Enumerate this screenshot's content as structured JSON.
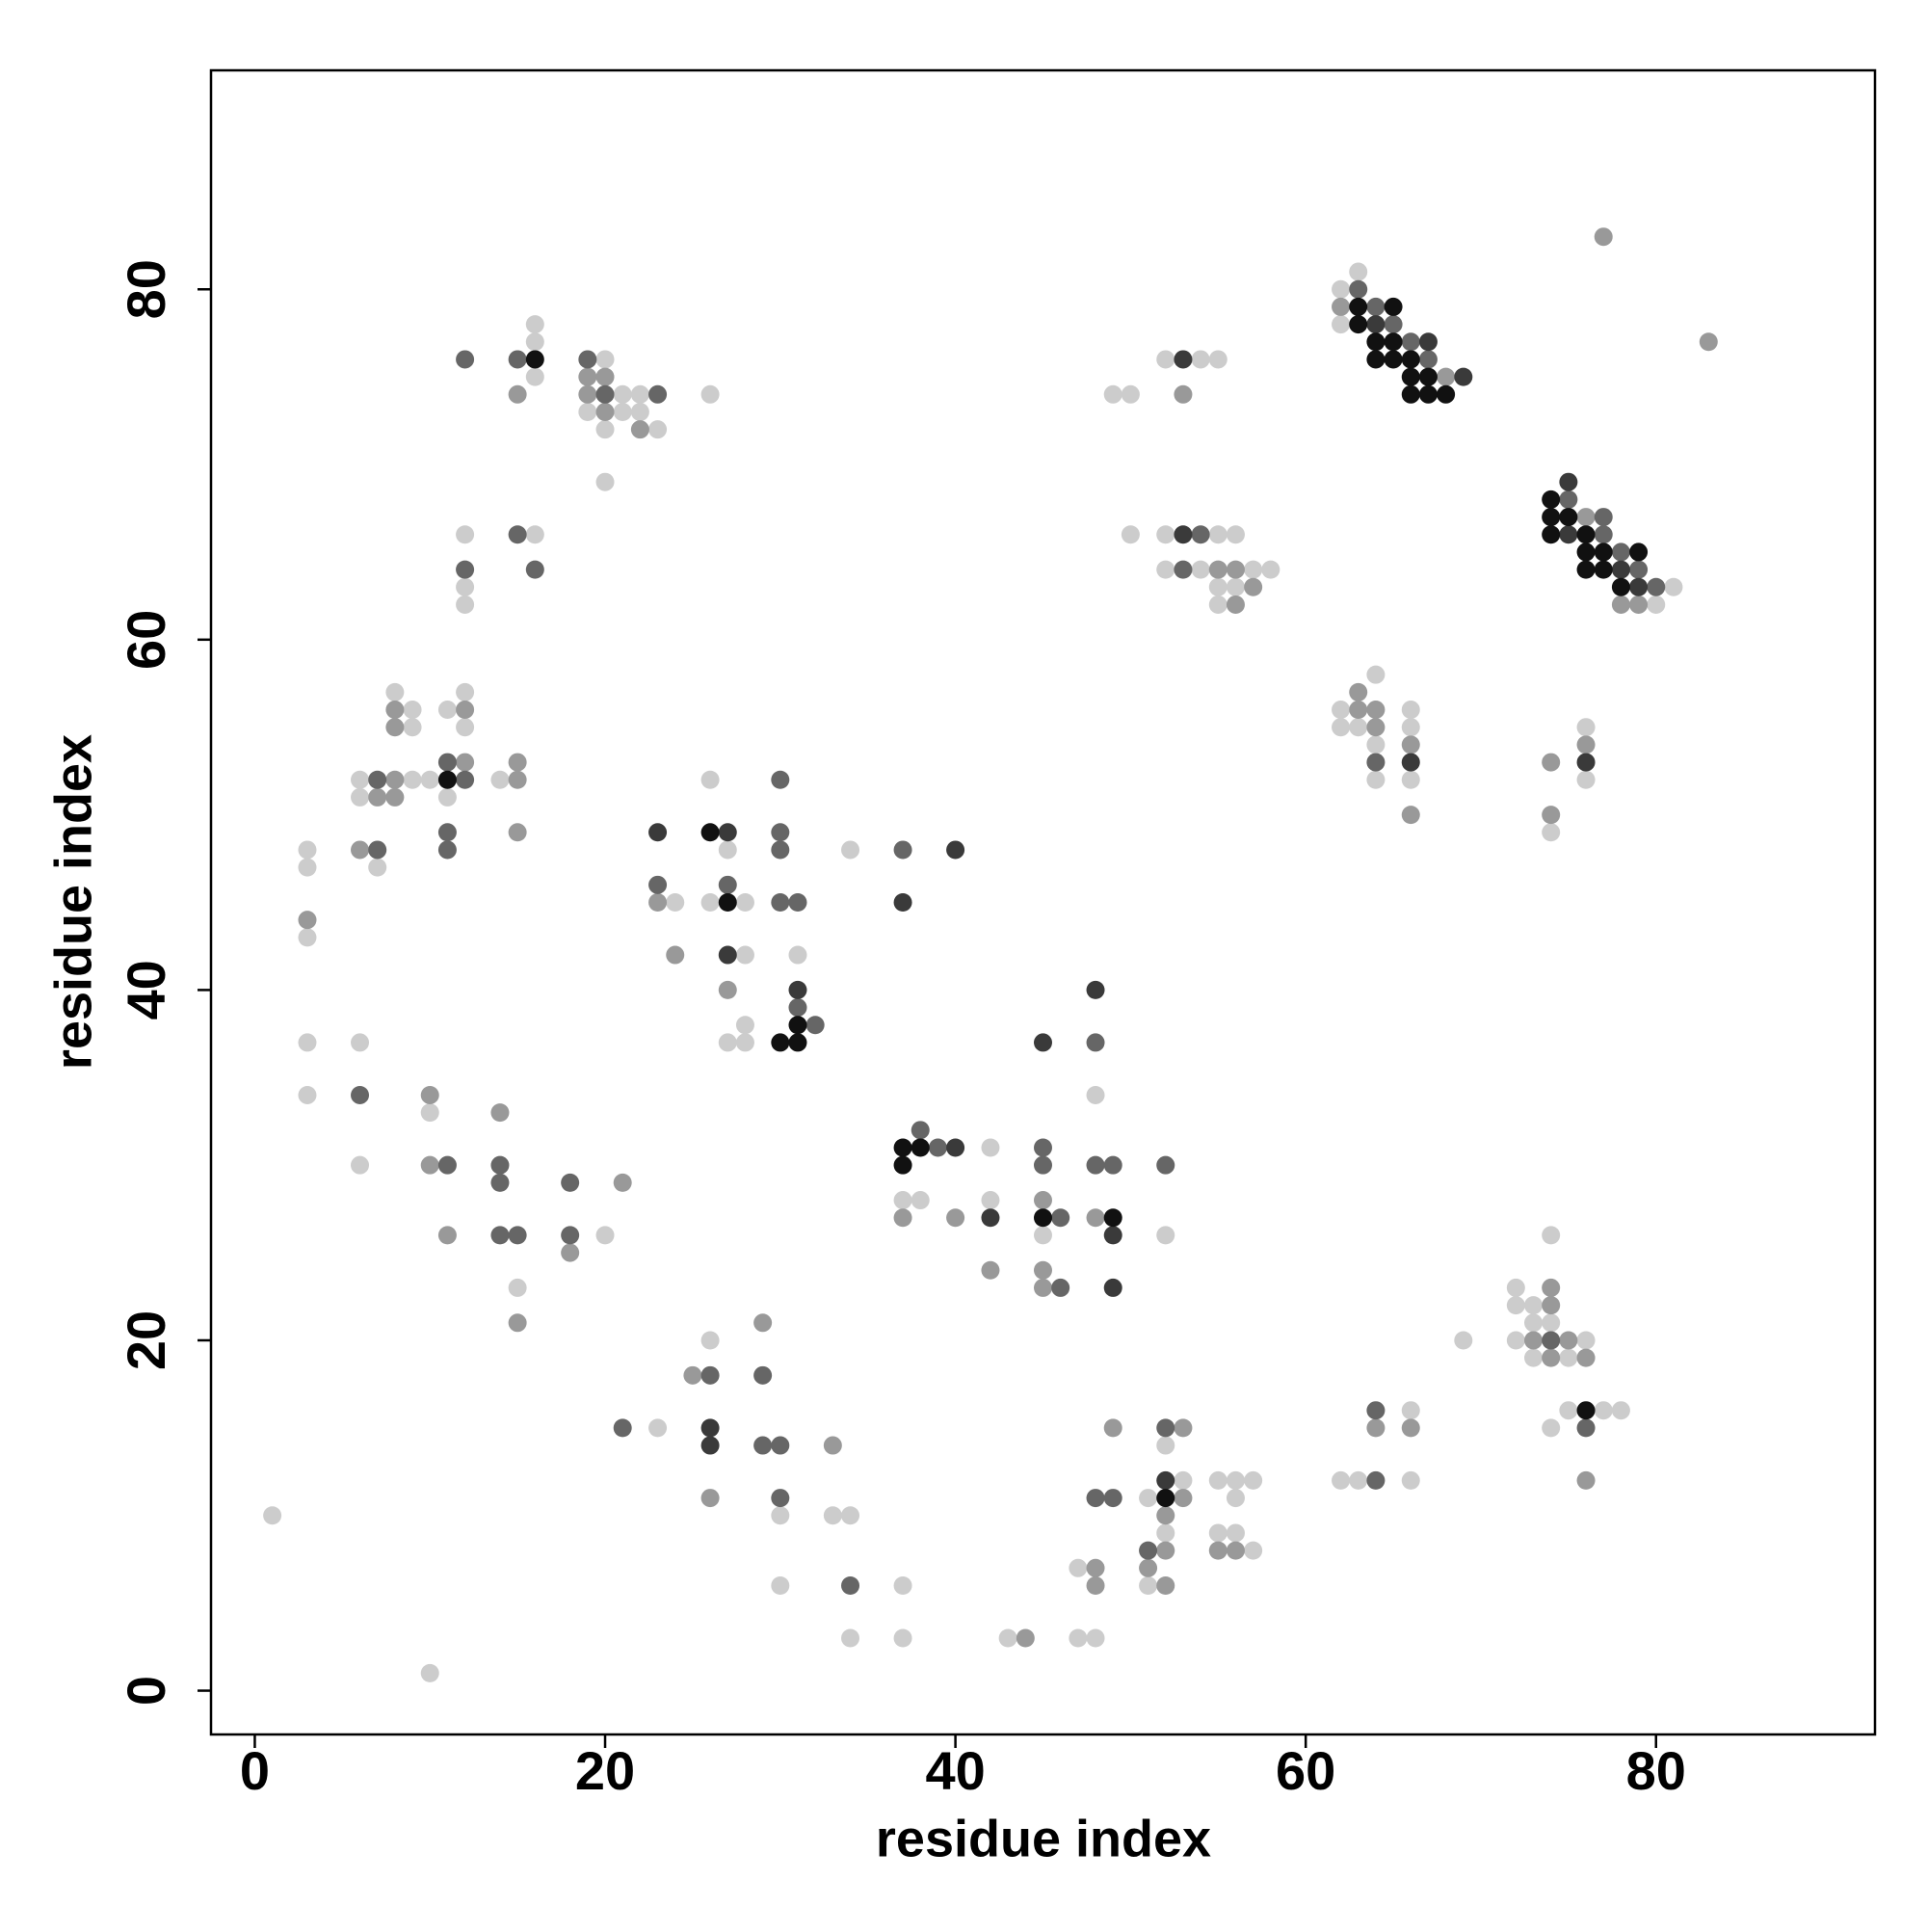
{
  "chart_data": {
    "type": "scatter",
    "x_label": "residue index",
    "y_label": "residue index",
    "xlim": [
      -2.5,
      92.5
    ],
    "ylim": [
      -2.5,
      92.5
    ],
    "xticks": [
      0,
      20,
      40,
      60,
      80
    ],
    "yticks": [
      0,
      20,
      40,
      60,
      80
    ],
    "grid": false,
    "series": [
      {
        "color": "#cccccc",
        "x": [
          1,
          10,
          3,
          3,
          3,
          3,
          3,
          6,
          6,
          7,
          8,
          9,
          9,
          9,
          10,
          11,
          11,
          12,
          12,
          14,
          6,
          6,
          10,
          15,
          20,
          16,
          16,
          16,
          20,
          21,
          22,
          19,
          21,
          22,
          20,
          23,
          20,
          26,
          12,
          12,
          12,
          16,
          26,
          27,
          24,
          26,
          28,
          28,
          31,
          28,
          27,
          28,
          34,
          37,
          38,
          42,
          42,
          45,
          48,
          52,
          26,
          23,
          30,
          33,
          34,
          30,
          37,
          34,
          37,
          43,
          47,
          48,
          47,
          51,
          51,
          52,
          53,
          52,
          55,
          56,
          57,
          56,
          55,
          56,
          57,
          62,
          63,
          66,
          66,
          69,
          72,
          72,
          73,
          74,
          73,
          74,
          72,
          76,
          73,
          75,
          74,
          75,
          77,
          78,
          49,
          50,
          52,
          54,
          55,
          50,
          52,
          55,
          56,
          52,
          54,
          57,
          58,
          55,
          56,
          55,
          62,
          64,
          62,
          63,
          64,
          64,
          66,
          66,
          66,
          74,
          76,
          76,
          62,
          63,
          62,
          81,
          80
        ],
        "values": [
          10,
          1,
          48,
          47,
          43,
          37,
          34,
          52,
          51,
          47,
          57,
          56,
          55,
          52,
          52,
          56,
          51,
          57,
          55,
          52,
          37,
          30,
          33,
          23,
          26,
          78,
          77,
          75,
          76,
          74,
          74,
          73,
          73,
          73,
          72,
          72,
          69,
          74,
          66,
          63,
          62,
          66,
          52,
          48,
          45,
          45,
          45,
          42,
          42,
          38,
          37,
          37,
          48,
          28,
          28,
          31,
          28,
          26,
          34,
          26,
          20,
          15,
          10,
          10,
          10,
          6,
          6,
          3,
          3,
          3,
          3,
          3,
          7,
          11,
          6,
          14,
          12,
          9,
          12,
          12,
          12,
          11,
          9,
          9,
          8,
          12,
          12,
          16,
          12,
          20,
          23,
          22,
          22,
          26,
          21,
          21,
          20,
          20,
          19,
          19,
          15,
          16,
          16,
          16,
          74,
          74,
          76,
          76,
          76,
          66,
          66,
          66,
          66,
          64,
          64,
          64,
          64,
          63,
          63,
          62,
          56,
          58,
          55,
          55,
          54,
          52,
          56,
          55,
          52,
          49,
          55,
          52,
          80,
          81,
          78,
          63,
          62
        ]
      },
      {
        "color": "#999999",
        "x": [
          3,
          6,
          7,
          8,
          8,
          8,
          8,
          12,
          12,
          15,
          15,
          15,
          15,
          19,
          20,
          19,
          20,
          22,
          10,
          10,
          11,
          14,
          15,
          18,
          21,
          23,
          24,
          27,
          37,
          40,
          42,
          45,
          45,
          45,
          48,
          25,
          29,
          33,
          26,
          44,
          48,
          48,
          49,
          51,
          53,
          53,
          52,
          52,
          52,
          55,
          56,
          64,
          66,
          74,
          74,
          73,
          75,
          74,
          76,
          76,
          53,
          55,
          56,
          57,
          56,
          63,
          63,
          64,
          64,
          66,
          66,
          74,
          74,
          76,
          62,
          68,
          76,
          78,
          79,
          77,
          83
        ],
        "values": [
          44,
          48,
          51,
          56,
          55,
          52,
          51,
          56,
          53,
          53,
          52,
          49,
          74,
          75,
          75,
          74,
          73,
          72,
          34,
          30,
          26,
          33,
          21,
          25,
          29,
          45,
          42,
          40,
          27,
          27,
          24,
          28,
          24,
          23,
          27,
          18,
          21,
          14,
          11,
          3,
          7,
          6,
          15,
          7,
          15,
          11,
          10,
          8,
          6,
          8,
          8,
          15,
          15,
          23,
          22,
          20,
          20,
          19,
          19,
          12,
          74,
          64,
          64,
          63,
          62,
          57,
          56,
          56,
          55,
          54,
          50,
          53,
          50,
          54,
          79,
          75,
          67,
          62,
          62,
          83,
          77
        ]
      },
      {
        "color": "#666666",
        "x": [
          7,
          7,
          11,
          11,
          11,
          12,
          12,
          15,
          15,
          16,
          12,
          19,
          20,
          23,
          6,
          11,
          14,
          14,
          14,
          15,
          18,
          18,
          30,
          30,
          30,
          23,
          27,
          30,
          31,
          31,
          32,
          37,
          38,
          39,
          45,
          45,
          46,
          46,
          48,
          49,
          48,
          52,
          26,
          29,
          21,
          29,
          30,
          30,
          34,
          48,
          49,
          51,
          52,
          64,
          64,
          74,
          76,
          54,
          53,
          64,
          63,
          64,
          65,
          66,
          67,
          75,
          77,
          77,
          78,
          79,
          80
        ],
        "values": [
          52,
          48,
          53,
          49,
          48,
          52,
          64,
          76,
          66,
          64,
          76,
          76,
          74,
          74,
          34,
          30,
          30,
          29,
          26,
          26,
          29,
          26,
          52,
          49,
          48,
          46,
          46,
          45,
          45,
          39,
          38,
          48,
          32,
          31,
          31,
          30,
          27,
          23,
          30,
          30,
          37,
          30,
          18,
          18,
          15,
          14,
          14,
          11,
          6,
          11,
          11,
          8,
          15,
          12,
          16,
          20,
          15,
          66,
          64,
          53,
          80,
          79,
          78,
          77,
          76,
          68,
          67,
          66,
          65,
          64,
          63
        ]
      },
      {
        "color": "#3a3a3a",
        "x": [
          23,
          27,
          27,
          31,
          40,
          37,
          40,
          42,
          45,
          48,
          49,
          49,
          26,
          26,
          52,
          53,
          53,
          66,
          76,
          64,
          67,
          69,
          75,
          75,
          78,
          79
        ],
        "values": [
          49,
          49,
          42,
          40,
          48,
          45,
          31,
          27,
          37,
          40,
          26,
          23,
          15,
          14,
          12,
          76,
          66,
          53,
          53,
          78,
          77,
          75,
          69,
          66,
          64,
          63
        ]
      },
      {
        "color": "#111111",
        "x": [
          11,
          16,
          26,
          27,
          31,
          30,
          31,
          37,
          38,
          37,
          45,
          49,
          52,
          76,
          63,
          65,
          63,
          64,
          65,
          64,
          65,
          66,
          66,
          67,
          66,
          67,
          68,
          74,
          74,
          75,
          74,
          76,
          76,
          77,
          79,
          76,
          77,
          78
        ],
        "values": [
          52,
          76,
          49,
          45,
          38,
          37,
          37,
          31,
          31,
          30,
          27,
          27,
          11,
          16,
          79,
          79,
          78,
          77,
          77,
          76,
          76,
          76,
          75,
          75,
          74,
          74,
          74,
          68,
          67,
          67,
          66,
          66,
          65,
          65,
          65,
          64,
          64,
          63
        ]
      }
    ]
  }
}
